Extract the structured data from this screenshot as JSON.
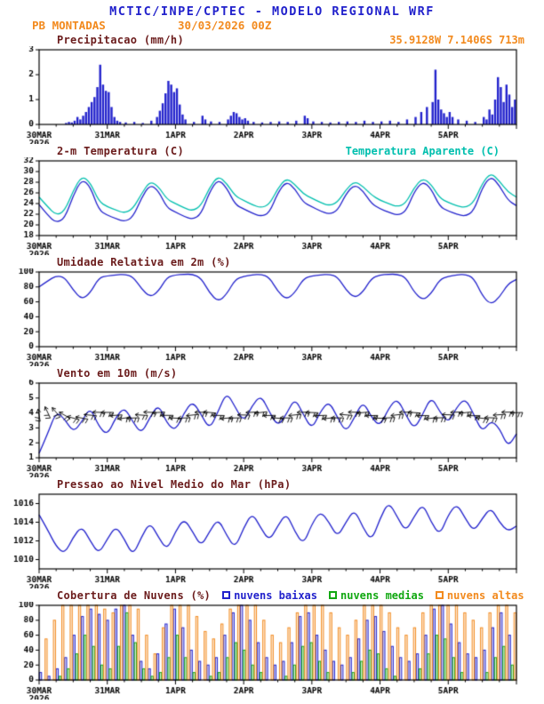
{
  "header": {
    "title": "MCTIC/INPE/CPTEC - MODELO REGIONAL WRF",
    "station": "PB MONTADAS",
    "run": "30/03/2026 00Z",
    "location": "35.9128W 7.1406S 713m"
  },
  "colors": {
    "blue": "#2222cc",
    "cyan": "#00bfae",
    "orange": "#f28a1e",
    "green": "#11a811",
    "panel_title": "#6b1c1c",
    "axis": "#000000"
  },
  "x_axis": {
    "labels": [
      "30MAR",
      "31MAR",
      "1APR",
      "2APR",
      "3APR",
      "4APR",
      "5APR"
    ],
    "year": "2026",
    "hours_total": 168
  },
  "panels": {
    "precip": {
      "title": "Precipitacao (mm/h)"
    },
    "temp": {
      "title": "2-m Temperatura (C)",
      "legend": "Temperatura Aparente (C)"
    },
    "rh": {
      "title": "Umidade Relativa em 2m (%)"
    },
    "wind": {
      "title": "Vento em 10m (m/s)"
    },
    "pressure": {
      "title": "Pressao ao Nivel Medio do Mar (hPa)"
    },
    "clouds": {
      "title": "Cobertura de Nuvens (%)",
      "legend": [
        {
          "label": "nuvens baixas",
          "color": "#2222cc"
        },
        {
          "label": "nuvens medias",
          "color": "#11a811"
        },
        {
          "label": "nuvens altas",
          "color": "#f28a1e"
        }
      ]
    }
  },
  "chart_data": [
    {
      "id": "precip",
      "type": "bar",
      "title": "Precipitacao (mm/h)",
      "xlabel": "",
      "ylabel": "mm/h",
      "ylim": [
        0,
        3
      ],
      "yticks": [
        0,
        1,
        2,
        3
      ],
      "color": "#2222cc",
      "bars": [
        [
          9,
          0.06
        ],
        [
          10,
          0.1
        ],
        [
          11,
          0.08
        ],
        [
          12,
          0.15
        ],
        [
          13,
          0.3
        ],
        [
          14,
          0.2
        ],
        [
          15,
          0.35
        ],
        [
          16,
          0.5
        ],
        [
          17,
          0.7
        ],
        [
          18,
          0.9
        ],
        [
          19,
          1.1
        ],
        [
          20,
          1.5
        ],
        [
          21,
          2.4
        ],
        [
          22,
          1.6
        ],
        [
          23,
          1.35
        ],
        [
          24,
          1.3
        ],
        [
          25,
          0.7
        ],
        [
          26,
          0.3
        ],
        [
          27,
          0.15
        ],
        [
          28,
          0.1
        ],
        [
          30,
          0.08
        ],
        [
          33,
          0.1
        ],
        [
          36,
          0.06
        ],
        [
          39,
          0.15
        ],
        [
          41,
          0.3
        ],
        [
          42,
          0.55
        ],
        [
          43,
          0.85
        ],
        [
          44,
          1.25
        ],
        [
          45,
          1.75
        ],
        [
          46,
          1.6
        ],
        [
          47,
          1.3
        ],
        [
          48,
          1.45
        ],
        [
          49,
          0.8
        ],
        [
          50,
          0.4
        ],
        [
          51,
          0.2
        ],
        [
          54,
          0.1
        ],
        [
          57,
          0.35
        ],
        [
          58,
          0.2
        ],
        [
          60,
          0.12
        ],
        [
          63,
          0.1
        ],
        [
          66,
          0.2
        ],
        [
          67,
          0.35
        ],
        [
          68,
          0.5
        ],
        [
          69,
          0.45
        ],
        [
          70,
          0.3
        ],
        [
          71,
          0.2
        ],
        [
          72,
          0.25
        ],
        [
          73,
          0.15
        ],
        [
          75,
          0.1
        ],
        [
          78,
          0.08
        ],
        [
          81,
          0.1
        ],
        [
          84,
          0.12
        ],
        [
          87,
          0.1
        ],
        [
          90,
          0.15
        ],
        [
          93,
          0.35
        ],
        [
          94,
          0.25
        ],
        [
          96,
          0.12
        ],
        [
          99,
          0.1
        ],
        [
          102,
          0.08
        ],
        [
          105,
          0.1
        ],
        [
          108,
          0.12
        ],
        [
          111,
          0.1
        ],
        [
          114,
          0.15
        ],
        [
          117,
          0.1
        ],
        [
          120,
          0.12
        ],
        [
          123,
          0.15
        ],
        [
          126,
          0.1
        ],
        [
          129,
          0.2
        ],
        [
          132,
          0.3
        ],
        [
          134,
          0.5
        ],
        [
          136,
          0.7
        ],
        [
          138,
          0.9
        ],
        [
          139,
          2.2
        ],
        [
          140,
          1.0
        ],
        [
          141,
          0.6
        ],
        [
          142,
          0.45
        ],
        [
          143,
          0.3
        ],
        [
          144,
          0.5
        ],
        [
          145,
          0.3
        ],
        [
          147,
          0.2
        ],
        [
          150,
          0.15
        ],
        [
          153,
          0.1
        ],
        [
          156,
          0.3
        ],
        [
          157,
          0.2
        ],
        [
          158,
          0.6
        ],
        [
          159,
          0.4
        ],
        [
          160,
          1.0
        ],
        [
          161,
          1.9
        ],
        [
          162,
          1.5
        ],
        [
          163,
          0.9
        ],
        [
          164,
          1.6
        ],
        [
          165,
          1.2
        ],
        [
          166,
          0.7
        ],
        [
          167,
          1.0
        ]
      ]
    },
    {
      "id": "temp",
      "type": "line",
      "title": "2-m Temperatura (C)",
      "ylim": [
        18,
        32
      ],
      "yticks": [
        18,
        20,
        22,
        24,
        26,
        28,
        30,
        32
      ],
      "step_hours": 3,
      "series": [
        {
          "name": "2-m Temperatura (C)",
          "color": "#2222cc",
          "values": [
            23.8,
            21.8,
            20.4,
            21.2,
            25.5,
            28.6,
            27.2,
            22.8,
            21.8,
            21.2,
            20.6,
            21.4,
            25.0,
            27.6,
            26.4,
            23.2,
            22.4,
            21.6,
            21.0,
            22.0,
            26.2,
            28.6,
            27.0,
            23.8,
            23.0,
            22.2,
            21.6,
            22.2,
            26.0,
            28.2,
            26.8,
            24.2,
            23.4,
            22.6,
            22.0,
            22.6,
            25.8,
            27.6,
            26.4,
            24.0,
            23.0,
            22.4,
            21.8,
            22.4,
            26.2,
            28.2,
            26.8,
            23.4,
            22.6,
            22.0,
            21.6,
            22.6,
            27.0,
            29.2,
            27.4,
            24.6,
            23.6
          ]
        },
        {
          "name": "Temperatura Aparente (C)",
          "color": "#00bfae",
          "values": [
            25.2,
            23.4,
            21.8,
            22.6,
            26.4,
            29.2,
            28.0,
            24.4,
            23.4,
            22.8,
            22.2,
            23.0,
            25.8,
            28.2,
            27.2,
            24.8,
            24.0,
            23.2,
            22.6,
            23.6,
            27.0,
            29.2,
            27.8,
            25.4,
            24.6,
            23.8,
            23.2,
            23.8,
            26.8,
            28.8,
            27.6,
            25.8,
            25.0,
            24.2,
            23.6,
            24.2,
            26.6,
            28.2,
            27.2,
            25.6,
            24.6,
            24.0,
            23.4,
            24.0,
            27.0,
            28.8,
            27.6,
            25.0,
            24.2,
            23.6,
            23.2,
            24.2,
            27.8,
            29.8,
            28.2,
            26.2,
            25.2
          ]
        }
      ]
    },
    {
      "id": "rh",
      "type": "line",
      "title": "Umidade Relativa em 2m (%)",
      "ylim": [
        0,
        100
      ],
      "yticks": [
        0,
        20,
        40,
        60,
        80,
        100
      ],
      "step_hours": 3,
      "series": [
        {
          "name": "Umidade Relativa",
          "color": "#2222cc",
          "values": [
            80,
            88,
            95,
            93,
            76,
            63,
            72,
            92,
            95,
            96,
            97,
            94,
            78,
            66,
            74,
            93,
            96,
            97,
            97,
            92,
            72,
            60,
            70,
            90,
            94,
            96,
            97,
            93,
            74,
            63,
            72,
            91,
            95,
            96,
            97,
            94,
            76,
            65,
            73,
            92,
            96,
            97,
            97,
            93,
            73,
            62,
            71,
            90,
            94,
            96,
            97,
            92,
            68,
            56,
            66,
            84,
            90
          ]
        }
      ]
    },
    {
      "id": "wind",
      "type": "line-barbs",
      "title": "Vento em 10m (m/s)",
      "ylim": [
        1,
        6
      ],
      "yticks": [
        1,
        2,
        3,
        4,
        5,
        6
      ],
      "step_hours": 3,
      "barb_center": 3.85,
      "series": [
        {
          "name": "Vento 10m",
          "color": "#2222cc",
          "values": [
            1.3,
            2.6,
            4.1,
            3.6,
            2.7,
            3.4,
            4.4,
            3.1,
            2.5,
            3.7,
            4.4,
            3.4,
            2.6,
            3.7,
            4.6,
            3.3,
            2.8,
            4.0,
            4.8,
            3.9,
            2.9,
            4.1,
            5.4,
            4.4,
            3.4,
            4.5,
            5.2,
            4.1,
            3.1,
            3.9,
            5.0,
            3.9,
            2.9,
            4.1,
            4.8,
            3.7,
            2.7,
            3.7,
            4.8,
            3.7,
            3.1,
            4.3,
            5.0,
            3.9,
            2.9,
            3.9,
            5.1,
            4.1,
            3.3,
            4.4,
            5.0,
            3.9,
            2.7,
            3.5,
            3.0,
            1.7,
            2.6
          ]
        }
      ],
      "barb_dirs": [
        100,
        115,
        130,
        150,
        165,
        170,
        175,
        178,
        180,
        184,
        188,
        182,
        176,
        178,
        184,
        180,
        178,
        182,
        186,
        180,
        175,
        179,
        185,
        181,
        179,
        183,
        187,
        181,
        176,
        180,
        186,
        182,
        178,
        182,
        186,
        180,
        175,
        179,
        185,
        181,
        179,
        183,
        187,
        181,
        176,
        180,
        186,
        182,
        178,
        182,
        186,
        180,
        174,
        178,
        184,
        180,
        182
      ]
    },
    {
      "id": "pressure",
      "type": "line",
      "title": "Pressao ao Nivel Medio do Mar (hPa)",
      "ylim": [
        1009,
        1017
      ],
      "yticks": [
        1010,
        1012,
        1014,
        1016
      ],
      "step_hours": 3,
      "series": [
        {
          "name": "PNMM",
          "color": "#2222cc",
          "values": [
            1014.8,
            1013.2,
            1011.4,
            1010.6,
            1012.4,
            1013.6,
            1012.0,
            1010.6,
            1012.2,
            1013.6,
            1012.2,
            1010.4,
            1012.4,
            1014.0,
            1012.4,
            1011.0,
            1013.0,
            1014.4,
            1013.0,
            1011.4,
            1013.0,
            1014.4,
            1012.6,
            1011.2,
            1013.4,
            1015.0,
            1013.4,
            1012.0,
            1013.6,
            1015.0,
            1013.0,
            1011.6,
            1013.8,
            1015.2,
            1014.0,
            1012.4,
            1014.0,
            1015.4,
            1013.4,
            1012.0,
            1014.4,
            1016.2,
            1014.6,
            1013.0,
            1014.6,
            1016.0,
            1014.0,
            1012.6,
            1014.8,
            1016.0,
            1014.4,
            1013.0,
            1014.4,
            1015.6,
            1014.0,
            1013.0,
            1013.6
          ]
        }
      ]
    },
    {
      "id": "clouds",
      "type": "grouped-bar",
      "title": "Cobertura de Nuvens (%)",
      "ylim": [
        0,
        100
      ],
      "yticks": [
        0,
        20,
        40,
        60,
        80,
        100
      ],
      "step_hours": 3,
      "series": [
        {
          "name": "nuvens baixas",
          "color": "#2222cc",
          "values": [
            10,
            5,
            15,
            30,
            60,
            85,
            95,
            88,
            80,
            95,
            100,
            60,
            25,
            15,
            35,
            75,
            95,
            70,
            40,
            25,
            20,
            30,
            60,
            90,
            100,
            80,
            50,
            30,
            20,
            25,
            50,
            85,
            90,
            60,
            40,
            25,
            20,
            30,
            55,
            80,
            85,
            65,
            45,
            30,
            25,
            35,
            60,
            95,
            100,
            75,
            50,
            35,
            30,
            40,
            70,
            90,
            60
          ]
        },
        {
          "name": "nuvens medias",
          "color": "#11a811",
          "values": [
            0,
            0,
            5,
            15,
            35,
            60,
            45,
            20,
            15,
            45,
            90,
            50,
            15,
            5,
            10,
            30,
            60,
            30,
            10,
            0,
            5,
            10,
            30,
            50,
            40,
            20,
            10,
            0,
            0,
            5,
            20,
            45,
            50,
            25,
            10,
            0,
            0,
            10,
            25,
            40,
            35,
            15,
            5,
            0,
            0,
            15,
            35,
            60,
            55,
            30,
            10,
            0,
            0,
            10,
            30,
            45,
            20
          ]
        },
        {
          "name": "nuvens altas",
          "color": "#f28a1e",
          "values": [
            55,
            80,
            100,
            100,
            100,
            100,
            100,
            95,
            90,
            100,
            100,
            95,
            60,
            35,
            70,
            100,
            100,
            100,
            85,
            65,
            55,
            75,
            95,
            100,
            100,
            100,
            80,
            60,
            50,
            70,
            90,
            100,
            100,
            100,
            90,
            70,
            60,
            80,
            100,
            100,
            100,
            90,
            70,
            60,
            70,
            90,
            100,
            100,
            100,
            100,
            90,
            80,
            70,
            90,
            100,
            100,
            90
          ]
        }
      ]
    }
  ]
}
